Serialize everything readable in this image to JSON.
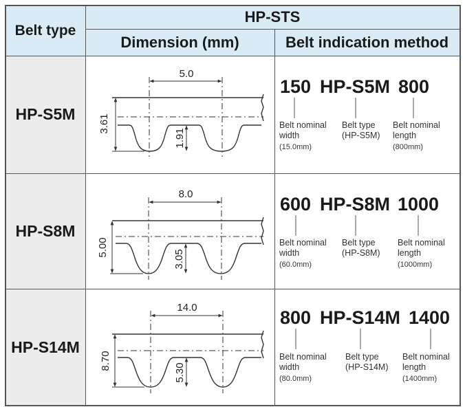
{
  "header": {
    "belt_type": "Belt type",
    "series": "HP-STS",
    "dimension": "Dimension (mm)",
    "indication": "Belt indication method"
  },
  "rows": [
    {
      "type": "HP-S5M",
      "pitch": "5.0",
      "height": "3.61",
      "tooth": "1.91",
      "code": {
        "width": "150",
        "type": "HP-S5M",
        "length": "800"
      },
      "width_label": [
        "Belt nominal",
        "width",
        "(15.0mm)"
      ],
      "type_label": [
        "Belt type",
        "(HP-S5M)"
      ],
      "length_label": [
        "Belt nominal",
        "length",
        "(800mm)"
      ]
    },
    {
      "type": "HP-S8M",
      "pitch": "8.0",
      "height": "5.00",
      "tooth": "3.05",
      "code": {
        "width": "600",
        "type": "HP-S8M",
        "length": "1000"
      },
      "width_label": [
        "Belt nominal",
        "width",
        "(60.0mm)"
      ],
      "type_label": [
        "Belt type",
        "(HP-S8M)"
      ],
      "length_label": [
        "Belt nominal",
        "length",
        "(1000mm)"
      ]
    },
    {
      "type": "HP-S14M",
      "pitch": "14.0",
      "height": "8.70",
      "tooth": "5.30",
      "code": {
        "width": "800",
        "type": "HP-S14M",
        "length": "1400"
      },
      "width_label": [
        "Belt nominal",
        "width",
        "(80.0mm)"
      ],
      "type_label": [
        "Belt type",
        "(HP-S14M)"
      ],
      "length_label": [
        "Belt nominal",
        "length",
        "(1400mm)"
      ]
    }
  ]
}
